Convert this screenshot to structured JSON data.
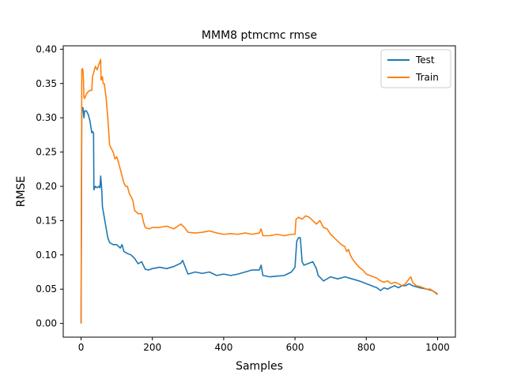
{
  "chart_data": {
    "type": "line",
    "title": "MMM8 ptmcmc rmse",
    "xlabel": "Samples",
    "ylabel": "RMSE",
    "xlim": [
      -50,
      1050
    ],
    "ylim": [
      -0.02,
      0.405
    ],
    "xticks": [
      0,
      200,
      400,
      600,
      800,
      1000
    ],
    "yticks": [
      0.0,
      0.05,
      0.1,
      0.15,
      0.2,
      0.25,
      0.3,
      0.35,
      0.4
    ],
    "xtick_labels": [
      "0",
      "200",
      "400",
      "600",
      "800",
      "1000"
    ],
    "ytick_labels": [
      "0.00",
      "0.05",
      "0.10",
      "0.15",
      "0.20",
      "0.25",
      "0.30",
      "0.35",
      "0.40"
    ],
    "grid": false,
    "legend_position": "top-right",
    "series": [
      {
        "name": "Test",
        "color": "#1f77b4",
        "points": [
          [
            0,
            0.0
          ],
          [
            2,
            0.31
          ],
          [
            5,
            0.315
          ],
          [
            8,
            0.3
          ],
          [
            10,
            0.31
          ],
          [
            15,
            0.31
          ],
          [
            20,
            0.305
          ],
          [
            25,
            0.295
          ],
          [
            30,
            0.278
          ],
          [
            32,
            0.28
          ],
          [
            35,
            0.278
          ],
          [
            36,
            0.195
          ],
          [
            40,
            0.2
          ],
          [
            45,
            0.198
          ],
          [
            50,
            0.2
          ],
          [
            53,
            0.198
          ],
          [
            55,
            0.215
          ],
          [
            58,
            0.195
          ],
          [
            60,
            0.17
          ],
          [
            65,
            0.155
          ],
          [
            70,
            0.14
          ],
          [
            75,
            0.125
          ],
          [
            80,
            0.118
          ],
          [
            90,
            0.115
          ],
          [
            100,
            0.115
          ],
          [
            110,
            0.11
          ],
          [
            115,
            0.115
          ],
          [
            120,
            0.105
          ],
          [
            130,
            0.102
          ],
          [
            140,
            0.1
          ],
          [
            150,
            0.095
          ],
          [
            160,
            0.087
          ],
          [
            170,
            0.09
          ],
          [
            180,
            0.079
          ],
          [
            190,
            0.078
          ],
          [
            200,
            0.08
          ],
          [
            220,
            0.082
          ],
          [
            240,
            0.08
          ],
          [
            260,
            0.083
          ],
          [
            280,
            0.088
          ],
          [
            285,
            0.092
          ],
          [
            290,
            0.085
          ],
          [
            300,
            0.072
          ],
          [
            320,
            0.075
          ],
          [
            340,
            0.073
          ],
          [
            360,
            0.075
          ],
          [
            380,
            0.07
          ],
          [
            400,
            0.072
          ],
          [
            420,
            0.07
          ],
          [
            440,
            0.072
          ],
          [
            460,
            0.075
          ],
          [
            480,
            0.078
          ],
          [
            500,
            0.078
          ],
          [
            505,
            0.085
          ],
          [
            510,
            0.07
          ],
          [
            530,
            0.068
          ],
          [
            550,
            0.069
          ],
          [
            570,
            0.07
          ],
          [
            590,
            0.075
          ],
          [
            600,
            0.082
          ],
          [
            605,
            0.12
          ],
          [
            610,
            0.125
          ],
          [
            615,
            0.125
          ],
          [
            620,
            0.09
          ],
          [
            625,
            0.085
          ],
          [
            640,
            0.088
          ],
          [
            650,
            0.09
          ],
          [
            660,
            0.08
          ],
          [
            665,
            0.07
          ],
          [
            680,
            0.062
          ],
          [
            700,
            0.068
          ],
          [
            720,
            0.065
          ],
          [
            740,
            0.068
          ],
          [
            760,
            0.065
          ],
          [
            780,
            0.062
          ],
          [
            790,
            0.06
          ],
          [
            800,
            0.058
          ],
          [
            815,
            0.055
          ],
          [
            830,
            0.052
          ],
          [
            840,
            0.048
          ],
          [
            850,
            0.052
          ],
          [
            860,
            0.05
          ],
          [
            870,
            0.053
          ],
          [
            880,
            0.055
          ],
          [
            890,
            0.052
          ],
          [
            900,
            0.055
          ],
          [
            910,
            0.055
          ],
          [
            920,
            0.058
          ],
          [
            930,
            0.055
          ],
          [
            950,
            0.052
          ],
          [
            970,
            0.05
          ],
          [
            985,
            0.048
          ],
          [
            1000,
            0.043
          ]
        ]
      },
      {
        "name": "Train",
        "color": "#ff7f0e",
        "points": [
          [
            0,
            0.0
          ],
          [
            2,
            0.37
          ],
          [
            4,
            0.372
          ],
          [
            6,
            0.365
          ],
          [
            8,
            0.33
          ],
          [
            10,
            0.328
          ],
          [
            15,
            0.335
          ],
          [
            20,
            0.338
          ],
          [
            25,
            0.34
          ],
          [
            30,
            0.34
          ],
          [
            32,
            0.36
          ],
          [
            35,
            0.365
          ],
          [
            40,
            0.375
          ],
          [
            45,
            0.37
          ],
          [
            50,
            0.378
          ],
          [
            55,
            0.385
          ],
          [
            56,
            0.355
          ],
          [
            60,
            0.36
          ],
          [
            62,
            0.35
          ],
          [
            65,
            0.35
          ],
          [
            70,
            0.33
          ],
          [
            75,
            0.3
          ],
          [
            80,
            0.26
          ],
          [
            85,
            0.255
          ],
          [
            90,
            0.25
          ],
          [
            95,
            0.24
          ],
          [
            100,
            0.243
          ],
          [
            105,
            0.235
          ],
          [
            110,
            0.225
          ],
          [
            115,
            0.215
          ],
          [
            120,
            0.205
          ],
          [
            125,
            0.2
          ],
          [
            130,
            0.2
          ],
          [
            135,
            0.19
          ],
          [
            140,
            0.185
          ],
          [
            145,
            0.18
          ],
          [
            150,
            0.165
          ],
          [
            160,
            0.16
          ],
          [
            170,
            0.16
          ],
          [
            175,
            0.148
          ],
          [
            180,
            0.14
          ],
          [
            190,
            0.138
          ],
          [
            200,
            0.14
          ],
          [
            220,
            0.14
          ],
          [
            240,
            0.142
          ],
          [
            260,
            0.138
          ],
          [
            280,
            0.145
          ],
          [
            290,
            0.14
          ],
          [
            300,
            0.133
          ],
          [
            320,
            0.132
          ],
          [
            340,
            0.133
          ],
          [
            360,
            0.135
          ],
          [
            380,
            0.132
          ],
          [
            400,
            0.13
          ],
          [
            420,
            0.131
          ],
          [
            440,
            0.13
          ],
          [
            460,
            0.132
          ],
          [
            480,
            0.13
          ],
          [
            500,
            0.132
          ],
          [
            505,
            0.138
          ],
          [
            510,
            0.128
          ],
          [
            530,
            0.128
          ],
          [
            550,
            0.13
          ],
          [
            570,
            0.128
          ],
          [
            590,
            0.13
          ],
          [
            600,
            0.13
          ],
          [
            603,
            0.152
          ],
          [
            610,
            0.155
          ],
          [
            620,
            0.152
          ],
          [
            630,
            0.157
          ],
          [
            640,
            0.155
          ],
          [
            650,
            0.15
          ],
          [
            660,
            0.145
          ],
          [
            670,
            0.15
          ],
          [
            680,
            0.14
          ],
          [
            690,
            0.138
          ],
          [
            700,
            0.13
          ],
          [
            710,
            0.125
          ],
          [
            720,
            0.12
          ],
          [
            730,
            0.115
          ],
          [
            740,
            0.112
          ],
          [
            745,
            0.105
          ],
          [
            750,
            0.108
          ],
          [
            755,
            0.1
          ],
          [
            760,
            0.095
          ],
          [
            770,
            0.088
          ],
          [
            780,
            0.082
          ],
          [
            790,
            0.078
          ],
          [
            800,
            0.072
          ],
          [
            810,
            0.07
          ],
          [
            820,
            0.068
          ],
          [
            830,
            0.066
          ],
          [
            840,
            0.062
          ],
          [
            850,
            0.06
          ],
          [
            860,
            0.062
          ],
          [
            870,
            0.058
          ],
          [
            880,
            0.06
          ],
          [
            890,
            0.058
          ],
          [
            900,
            0.055
          ],
          [
            910,
            0.058
          ],
          [
            920,
            0.065
          ],
          [
            925,
            0.068
          ],
          [
            930,
            0.06
          ],
          [
            940,
            0.055
          ],
          [
            950,
            0.054
          ],
          [
            960,
            0.052
          ],
          [
            970,
            0.05
          ],
          [
            980,
            0.05
          ],
          [
            990,
            0.046
          ],
          [
            1000,
            0.042
          ]
        ]
      }
    ]
  }
}
